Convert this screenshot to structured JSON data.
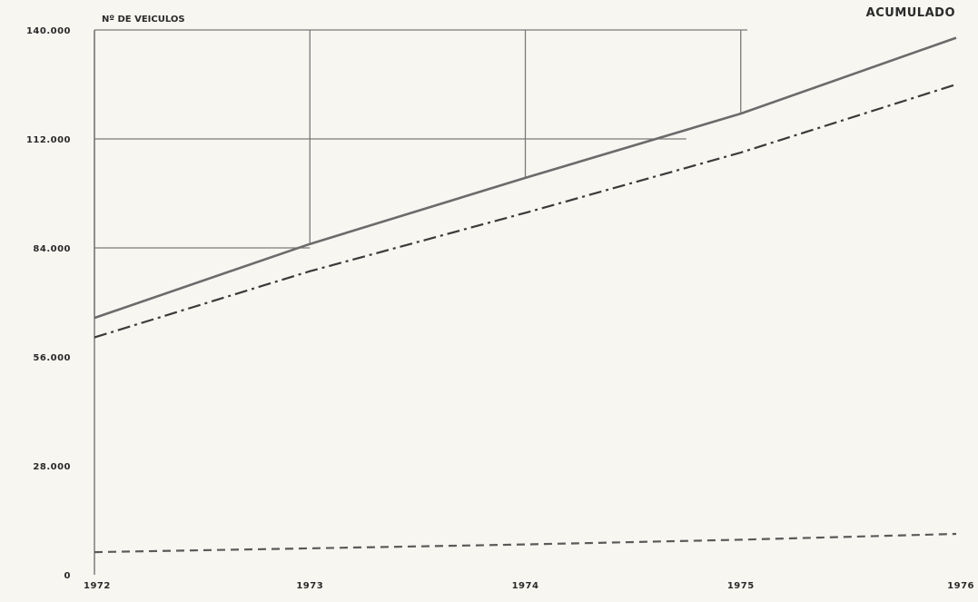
{
  "chart_data": {
    "type": "line",
    "title": "ACUMULADO",
    "ylabel": "Nº DE VEICULOS",
    "xlabel": "",
    "x": [
      "1972",
      "1973",
      "1974",
      "1975",
      "1976"
    ],
    "ylim": [
      0,
      140000
    ],
    "ytick_values": [
      0,
      28000,
      56000,
      84000,
      112000,
      140000
    ],
    "ytick_labels": [
      "0",
      "28.000",
      "56.000",
      "84.000",
      "112.000",
      "140.000"
    ],
    "xtick_labels": [
      "1972",
      "1973",
      "1974",
      "1975",
      "1976"
    ],
    "grid": true,
    "series": [
      {
        "style": "solid",
        "color": "#6b6b6b",
        "values": [
          66000,
          85000,
          102000,
          118500,
          138000
        ]
      },
      {
        "style": "dashdot",
        "color": "#3a3a3a",
        "values": [
          61000,
          78000,
          93000,
          108500,
          126000
        ]
      },
      {
        "style": "dashed",
        "color": "#5a5a5a",
        "values": [
          5800,
          6800,
          7800,
          9000,
          10500
        ]
      }
    ]
  }
}
